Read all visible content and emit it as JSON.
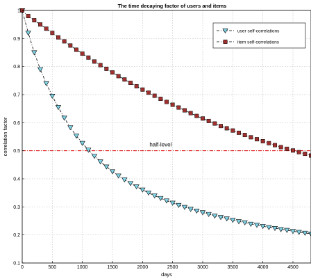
{
  "chart_data": {
    "type": "line",
    "title": "The time decaying factor of users and items",
    "xlabel": "days",
    "ylabel": "correlation factor",
    "xlim": [
      0,
      4800
    ],
    "ylim": [
      0.1,
      1.0
    ],
    "x_ticks": [
      0,
      500,
      1000,
      1500,
      2000,
      2500,
      3000,
      3500,
      4000,
      4500
    ],
    "y_ticks": [
      0.1,
      0.2,
      0.3,
      0.4,
      0.5,
      0.6,
      0.7,
      0.8,
      0.9,
      1.0
    ],
    "x_tick_labels": [
      "0",
      "500",
      "1000",
      "1500",
      "2000",
      "2500",
      "3000",
      "3500",
      "4000",
      "4500"
    ],
    "y_tick_labels": [
      "0.1",
      "0.2",
      "0.3",
      "0.4",
      "0.5",
      "0.6",
      "0.7",
      "0.8",
      "0.9",
      "1"
    ],
    "grid": true,
    "legend_position": "top-right",
    "x": [
      0,
      100,
      200,
      300,
      400,
      500,
      600,
      700,
      800,
      900,
      1000,
      1100,
      1200,
      1300,
      1400,
      1500,
      1600,
      1700,
      1800,
      1900,
      2000,
      2100,
      2200,
      2300,
      2400,
      2500,
      2600,
      2700,
      2800,
      2900,
      3000,
      3100,
      3200,
      3300,
      3400,
      3500,
      3600,
      3700,
      3800,
      3900,
      4000,
      4100,
      4200,
      4300,
      4400,
      4500,
      4600,
      4700,
      4800
    ],
    "series": [
      {
        "name": "user self-correlations",
        "color": "#000000",
        "marker_color": "#7fd3e6",
        "marker": "triangle-down",
        "line_style": "dash-dot",
        "values": [
          1.0,
          0.92,
          0.85,
          0.79,
          0.74,
          0.695,
          0.655,
          0.617,
          0.583,
          0.553,
          0.527,
          0.503,
          0.481,
          0.461,
          0.443,
          0.426,
          0.411,
          0.397,
          0.384,
          0.372,
          0.361,
          0.35,
          0.34,
          0.331,
          0.322,
          0.314,
          0.306,
          0.299,
          0.292,
          0.286,
          0.28,
          0.274,
          0.268,
          0.263,
          0.258,
          0.253,
          0.248,
          0.244,
          0.239,
          0.235,
          0.231,
          0.227,
          0.224,
          0.22,
          0.217,
          0.213,
          0.21,
          0.207,
          0.204
        ]
      },
      {
        "name": "item self-correlations",
        "color": "#000000",
        "marker_color": "#a0302e",
        "marker": "square",
        "line_style": "dash-dot",
        "values": [
          1.0,
          0.98,
          0.965,
          0.95,
          0.935,
          0.92,
          0.904,
          0.89,
          0.875,
          0.86,
          0.846,
          0.832,
          0.818,
          0.805,
          0.792,
          0.779,
          0.766,
          0.754,
          0.742,
          0.73,
          0.718,
          0.707,
          0.696,
          0.685,
          0.674,
          0.664,
          0.654,
          0.644,
          0.634,
          0.624,
          0.615,
          0.606,
          0.597,
          0.588,
          0.58,
          0.572,
          0.564,
          0.556,
          0.548,
          0.541,
          0.534,
          0.527,
          0.52,
          0.513,
          0.507,
          0.501,
          0.495,
          0.489,
          0.483
        ]
      }
    ],
    "reference_line": {
      "y": 0.5,
      "label": "half-level",
      "color": "#dd0000",
      "label_x": 2300
    }
  }
}
